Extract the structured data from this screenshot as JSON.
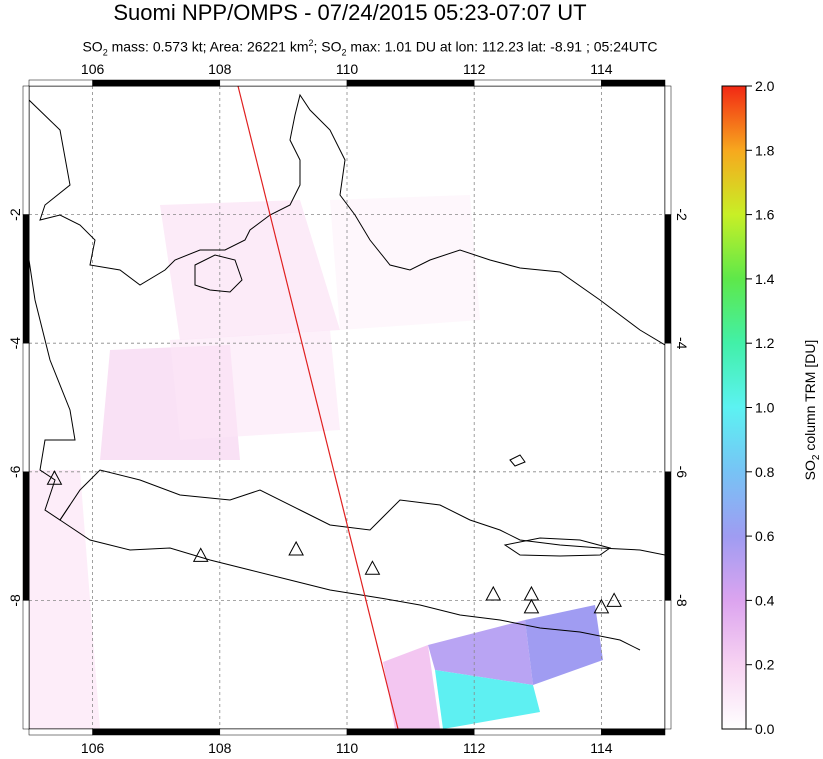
{
  "header": {
    "title": "Suomi NPP/OMPS - 07/24/2015 05:23-07:07 UT",
    "subtitle_parts": {
      "p1": "SO",
      "sub1": "2",
      "p2": " mass: 0.573 kt; Area: 26221 km",
      "sup1": "2",
      "p3": "; SO",
      "sub2": "2",
      "p4": " max: 1.01 DU at lon: 112.23 lat: -8.91 ; 05:24UTC"
    }
  },
  "map": {
    "lon_ticks": [
      "106",
      "108",
      "110",
      "112",
      "114"
    ],
    "lat_ticks": [
      "-2",
      "-4",
      "-6",
      "-8"
    ],
    "lon_values": [
      106,
      108,
      110,
      112,
      114
    ],
    "lat_values": [
      -2,
      -4,
      -6,
      -8
    ],
    "lon_range": [
      105,
      115
    ],
    "lat_range": [
      -10,
      0
    ],
    "volcano_icon": "triangle-icon",
    "volcanoes": [
      {
        "lon": 105.4,
        "lat": -6.1
      },
      {
        "lon": 107.7,
        "lat": -7.3
      },
      {
        "lon": 109.2,
        "lat": -7.2
      },
      {
        "lon": 110.4,
        "lat": -7.5
      },
      {
        "lon": 112.3,
        "lat": -7.9
      },
      {
        "lon": 112.9,
        "lat": -7.9
      },
      {
        "lon": 112.9,
        "lat": -8.1
      },
      {
        "lon": 114.0,
        "lat": -8.1
      },
      {
        "lon": 114.2,
        "lat": -8.0
      }
    ],
    "orbit_line_color": "#e02020",
    "coast_color": "#000000",
    "grid_color": "#888888"
  },
  "colorbar": {
    "label_main": "SO",
    "label_sub": "2",
    "label_rest": " column TRM [DU]",
    "ticks": [
      "0.0",
      "0.2",
      "0.4",
      "0.6",
      "0.8",
      "1.0",
      "1.2",
      "1.4",
      "1.6",
      "1.8",
      "2.0"
    ],
    "range": [
      0,
      2.0
    ]
  }
}
